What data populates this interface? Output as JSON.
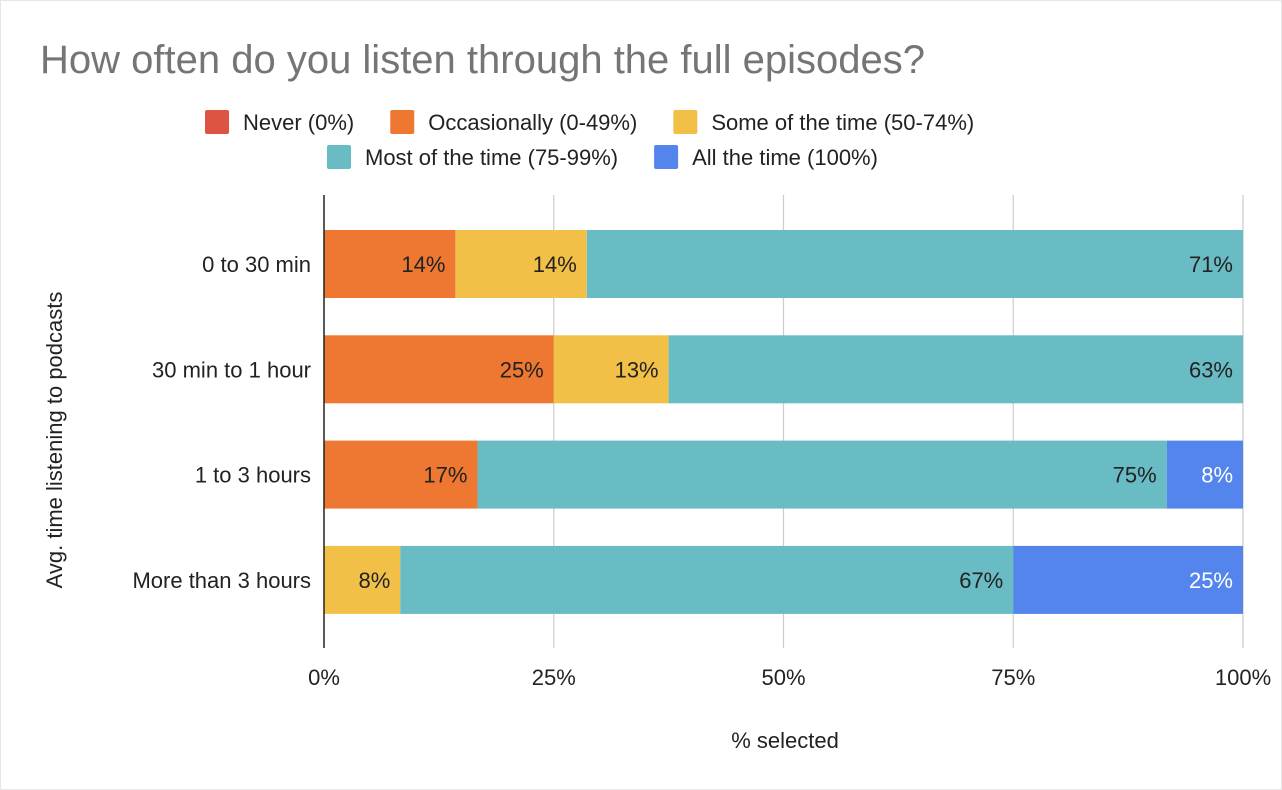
{
  "chart_data": {
    "type": "bar",
    "orientation": "horizontal",
    "stacked": "percent",
    "title": "How often do you listen through the full episodes?",
    "xlabel": "% selected",
    "ylabel": "Avg. time listening to podcasts",
    "xlim": [
      0,
      100
    ],
    "xticks": [
      "0%",
      "25%",
      "50%",
      "75%",
      "100%"
    ],
    "grid": true,
    "legend_position": "top",
    "categories": [
      "0 to 30 min",
      "30 min to 1 hour",
      "1 to 3 hours",
      "More than 3 hours"
    ],
    "series": [
      {
        "name": "Never (0%)",
        "color": "#dd5444",
        "values": [
          0,
          0,
          0,
          0
        ],
        "labels": [
          "",
          "",
          "",
          ""
        ]
      },
      {
        "name": "Occasionally (0-49%)",
        "color": "#ee7731",
        "values": [
          14.3,
          25,
          16.7,
          0
        ],
        "labels": [
          "14%",
          "25%",
          "17%",
          ""
        ]
      },
      {
        "name": "Some of the time (50-74%)",
        "color": "#f2c046",
        "values": [
          14.3,
          12.5,
          0,
          8.3
        ],
        "labels": [
          "14%",
          "13%",
          "",
          "8%"
        ]
      },
      {
        "name": "Most of the time (75-99%)",
        "color": "#69bcc4",
        "values": [
          71.4,
          62.5,
          75,
          66.7
        ],
        "labels": [
          "71%",
          "63%",
          "75%",
          "67%"
        ]
      },
      {
        "name": "All the time (100%)",
        "color": "#5385ec",
        "values": [
          0,
          0,
          8.3,
          25
        ],
        "labels": [
          "",
          "",
          "8%",
          "25%"
        ]
      }
    ]
  }
}
